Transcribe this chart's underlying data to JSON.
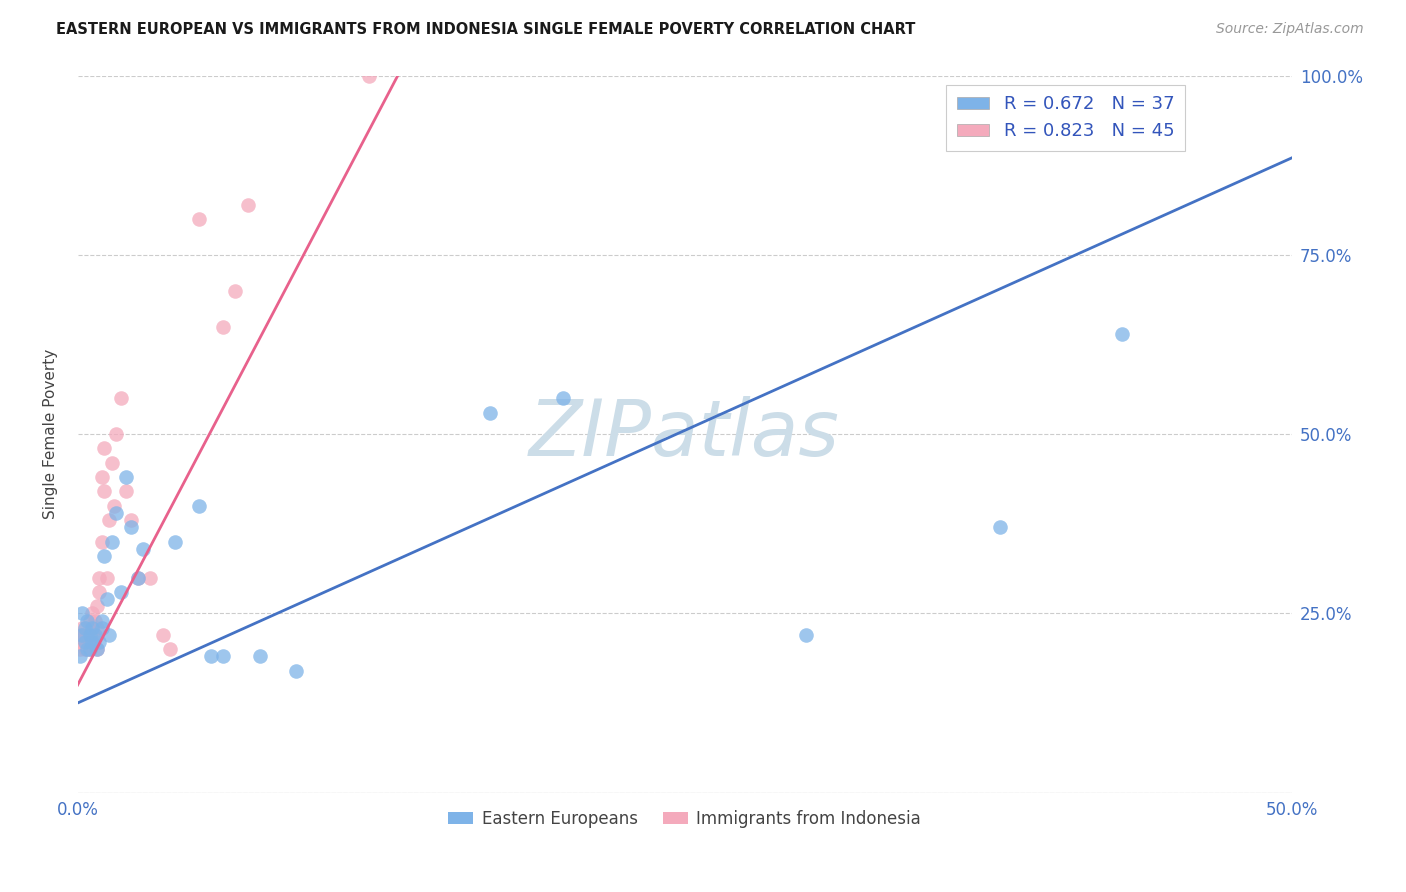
{
  "title": "EASTERN EUROPEAN VS IMMIGRANTS FROM INDONESIA SINGLE FEMALE POVERTY CORRELATION CHART",
  "source": "Source: ZipAtlas.com",
  "ylabel_text": "Single Female Poverty",
  "xlim": [
    0,
    0.5
  ],
  "ylim": [
    0,
    1.0
  ],
  "xticks": [
    0.0,
    0.1,
    0.2,
    0.3,
    0.4,
    0.5
  ],
  "xticklabels": [
    "0.0%",
    "",
    "",
    "",
    "",
    "50.0%"
  ],
  "yticks_right": [
    0.0,
    0.25,
    0.5,
    0.75,
    1.0
  ],
  "yticklabels_right": [
    "",
    "25.0%",
    "50.0%",
    "75.0%",
    "100.0%"
  ],
  "blue_R": "0.672",
  "blue_N": "37",
  "pink_R": "0.823",
  "pink_N": "45",
  "blue_label": "Eastern Europeans",
  "pink_label": "Immigrants from Indonesia",
  "blue_color": "#7EB3E8",
  "pink_color": "#F4AABC",
  "blue_line_color": "#4472C4",
  "pink_line_color": "#E8618C",
  "watermark": "ZIPatlas",
  "watermark_color": "#CCDDE8",
  "background_color": "#FFFFFF",
  "grid_color": "#CCCCCC",
  "blue_x": [
    0.001,
    0.002,
    0.002,
    0.003,
    0.003,
    0.004,
    0.004,
    0.005,
    0.005,
    0.006,
    0.006,
    0.007,
    0.008,
    0.009,
    0.01,
    0.01,
    0.011,
    0.012,
    0.013,
    0.014,
    0.016,
    0.018,
    0.02,
    0.022,
    0.025,
    0.027,
    0.04,
    0.05,
    0.055,
    0.06,
    0.075,
    0.09,
    0.17,
    0.2,
    0.3,
    0.38,
    0.43
  ],
  "blue_y": [
    0.19,
    0.22,
    0.25,
    0.21,
    0.23,
    0.2,
    0.24,
    0.22,
    0.2,
    0.21,
    0.23,
    0.22,
    0.2,
    0.21,
    0.23,
    0.24,
    0.33,
    0.27,
    0.22,
    0.35,
    0.39,
    0.28,
    0.44,
    0.37,
    0.3,
    0.34,
    0.35,
    0.4,
    0.19,
    0.19,
    0.19,
    0.17,
    0.53,
    0.55,
    0.22,
    0.37,
    0.64
  ],
  "pink_x": [
    0.001,
    0.001,
    0.002,
    0.002,
    0.002,
    0.003,
    0.003,
    0.003,
    0.004,
    0.004,
    0.004,
    0.005,
    0.005,
    0.005,
    0.006,
    0.006,
    0.006,
    0.007,
    0.007,
    0.008,
    0.008,
    0.008,
    0.009,
    0.009,
    0.01,
    0.01,
    0.011,
    0.011,
    0.012,
    0.013,
    0.014,
    0.015,
    0.016,
    0.018,
    0.02,
    0.022,
    0.025,
    0.03,
    0.035,
    0.038,
    0.05,
    0.06,
    0.065,
    0.07,
    0.12
  ],
  "pink_y": [
    0.22,
    0.2,
    0.21,
    0.23,
    0.22,
    0.2,
    0.22,
    0.21,
    0.2,
    0.22,
    0.21,
    0.2,
    0.22,
    0.24,
    0.21,
    0.23,
    0.25,
    0.22,
    0.24,
    0.2,
    0.23,
    0.26,
    0.28,
    0.3,
    0.35,
    0.44,
    0.48,
    0.42,
    0.3,
    0.38,
    0.46,
    0.4,
    0.5,
    0.55,
    0.42,
    0.38,
    0.3,
    0.3,
    0.22,
    0.2,
    0.8,
    0.65,
    0.7,
    0.82,
    1.0
  ],
  "blue_trend_x": [
    0.0,
    0.5
  ],
  "blue_trend_y": [
    0.125,
    0.885
  ],
  "pink_trend_x": [
    0.0,
    0.135
  ],
  "pink_trend_y": [
    0.15,
    1.02
  ]
}
